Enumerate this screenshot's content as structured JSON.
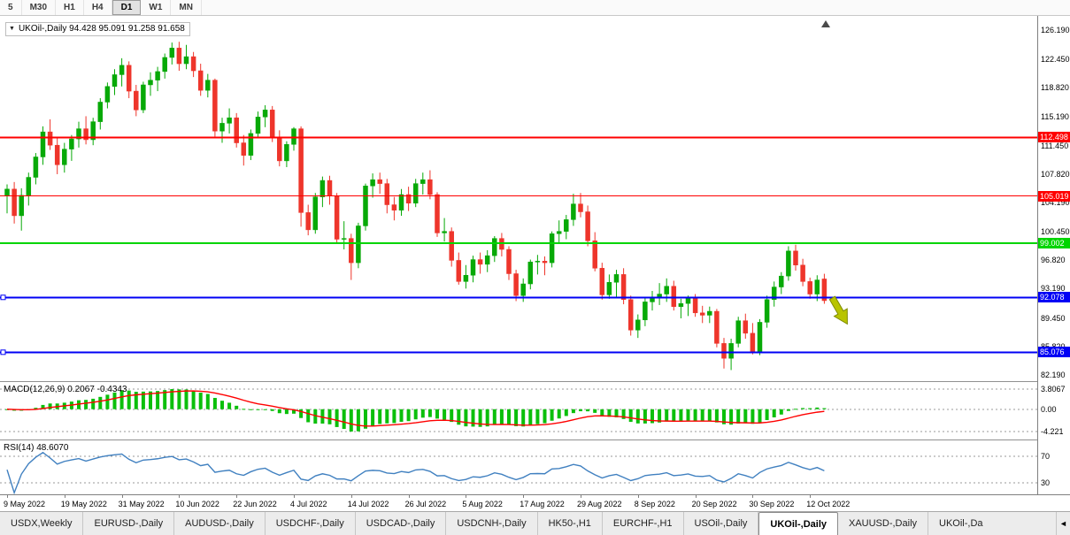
{
  "toolbar": {
    "periods": [
      "5",
      "M30",
      "H1",
      "H4",
      "D1",
      "W1",
      "MN"
    ],
    "active": "D1"
  },
  "labels": {
    "chart_title": "UKOil-,Daily  94.428 95.091 91.258 91.658",
    "macd": "MACD(12,26,9) 0.2067 -0.4343",
    "rsi": "RSI(14) 48.6070"
  },
  "icons": {
    "collapse": "▼",
    "shift_marker": "▲",
    "tab_scroll": "◄"
  },
  "chart_data": {
    "type": "candlestick",
    "symbol": "UKOil-",
    "timeframe": "Daily",
    "title_ohlc": {
      "open": 94.428,
      "high": 95.091,
      "low": 91.258,
      "close": 91.658
    },
    "y_visible_range": [
      81.4,
      128.0
    ],
    "y_axis_ticks": [
      "126.190",
      "122.450",
      "118.820",
      "115.190",
      "111.450",
      "107.820",
      "104.190",
      "100.450",
      "96.820",
      "93.190",
      "89.450",
      "85.820",
      "82.190"
    ],
    "x_axis_labels": [
      {
        "label": "9 May 2022",
        "index": 0
      },
      {
        "label": "19 May 2022",
        "index": 8
      },
      {
        "label": "31 May 2022",
        "index": 16
      },
      {
        "label": "10 Jun 2022",
        "index": 24
      },
      {
        "label": "22 Jun 2022",
        "index": 32
      },
      {
        "label": "4 Jul 2022",
        "index": 40
      },
      {
        "label": "14 Jul 2022",
        "index": 48
      },
      {
        "label": "26 Jul 2022",
        "index": 56
      },
      {
        "label": "5 Aug 2022",
        "index": 64
      },
      {
        "label": "17 Aug 2022",
        "index": 72
      },
      {
        "label": "29 Aug 2022",
        "index": 80
      },
      {
        "label": "8 Sep 2022",
        "index": 88
      },
      {
        "label": "20 Sep 2022",
        "index": 96
      },
      {
        "label": "30 Sep 2022",
        "index": 104
      },
      {
        "label": "12 Oct 2022",
        "index": 112
      }
    ],
    "levels": [
      {
        "value": 112.498,
        "label": "112.498",
        "color": "#FF0000",
        "width": 2,
        "handle": false
      },
      {
        "value": 105.019,
        "label": "105.019",
        "color": "#FF0000",
        "width": 1,
        "handle": false
      },
      {
        "value": 99.002,
        "label": "99.002",
        "color": "#00D500",
        "width": 2,
        "handle": false
      },
      {
        "value": 92.078,
        "label": "92.078",
        "color": "#0000F5",
        "width": 2,
        "handle": true
      },
      {
        "value": 85.076,
        "label": "85.076",
        "color": "#0000F5",
        "width": 2,
        "handle": true
      }
    ],
    "ohlc": [
      [
        105.0,
        106.5,
        102.8,
        105.9
      ],
      [
        105.9,
        106.8,
        101.5,
        102.5
      ],
      [
        102.5,
        106.0,
        100.6,
        105.1
      ],
      [
        105.1,
        108.0,
        103.8,
        107.4
      ],
      [
        107.4,
        110.5,
        106.5,
        110.0
      ],
      [
        110.0,
        113.9,
        109.0,
        113.2
      ],
      [
        113.2,
        114.8,
        110.9,
        111.5
      ],
      [
        111.5,
        112.5,
        107.8,
        109.0
      ],
      [
        109.0,
        111.8,
        108.0,
        111.0
      ],
      [
        111.0,
        112.8,
        109.5,
        112.3
      ],
      [
        112.3,
        114.5,
        111.2,
        113.6
      ],
      [
        113.6,
        115.2,
        111.6,
        112.2
      ],
      [
        112.2,
        115.0,
        111.5,
        114.5
      ],
      [
        114.5,
        117.5,
        113.5,
        117.0
      ],
      [
        117.0,
        119.5,
        116.2,
        119.0
      ],
      [
        119.0,
        121.2,
        117.9,
        120.5
      ],
      [
        120.5,
        122.6,
        119.0,
        121.7
      ],
      [
        121.7,
        122.2,
        117.5,
        118.4
      ],
      [
        118.4,
        119.2,
        115.2,
        116.0
      ],
      [
        116.0,
        119.6,
        115.6,
        119.2
      ],
      [
        119.2,
        120.8,
        117.8,
        119.8
      ],
      [
        119.8,
        121.5,
        118.4,
        120.9
      ],
      [
        120.9,
        123.2,
        120.0,
        122.7
      ],
      [
        122.7,
        124.6,
        121.8,
        123.9
      ],
      [
        123.9,
        124.7,
        121.0,
        121.9
      ],
      [
        121.9,
        124.3,
        121.2,
        122.8
      ],
      [
        122.8,
        123.4,
        120.2,
        121.0
      ],
      [
        121.0,
        121.9,
        117.8,
        118.5
      ],
      [
        118.5,
        120.6,
        117.6,
        119.8
      ],
      [
        119.8,
        120.0,
        112.6,
        113.3
      ],
      [
        113.3,
        115.0,
        111.8,
        114.3
      ],
      [
        114.3,
        116.2,
        113.0,
        115.0
      ],
      [
        115.0,
        115.6,
        111.2,
        111.8
      ],
      [
        111.8,
        112.8,
        108.9,
        110.2
      ],
      [
        110.2,
        113.5,
        109.6,
        113.0
      ],
      [
        113.0,
        115.8,
        112.4,
        115.1
      ],
      [
        115.1,
        116.6,
        113.8,
        116.0
      ],
      [
        116.0,
        116.5,
        111.9,
        112.5
      ],
      [
        112.5,
        113.4,
        108.8,
        109.5
      ],
      [
        109.5,
        112.0,
        108.7,
        111.6
      ],
      [
        111.6,
        113.8,
        110.8,
        113.6
      ],
      [
        113.6,
        113.9,
        101.1,
        102.9
      ],
      [
        102.9,
        103.9,
        100.0,
        100.7
      ],
      [
        100.7,
        105.4,
        100.2,
        104.9
      ],
      [
        104.9,
        107.5,
        103.6,
        107.0
      ],
      [
        107.0,
        107.6,
        103.9,
        105.0
      ],
      [
        105.0,
        105.4,
        98.9,
        99.5
      ],
      [
        99.5,
        101.8,
        98.2,
        99.6
      ],
      [
        99.6,
        100.2,
        94.3,
        96.5
      ],
      [
        96.5,
        101.6,
        95.8,
        101.2
      ],
      [
        101.2,
        106.6,
        100.6,
        106.3
      ],
      [
        106.3,
        107.9,
        104.8,
        107.1
      ],
      [
        107.1,
        108.0,
        105.3,
        106.6
      ],
      [
        106.6,
        107.2,
        102.8,
        103.9
      ],
      [
        103.9,
        104.9,
        101.9,
        103.2
      ],
      [
        103.2,
        105.9,
        102.5,
        105.2
      ],
      [
        105.2,
        106.2,
        103.1,
        104.1
      ],
      [
        104.1,
        107.2,
        103.6,
        106.6
      ],
      [
        106.6,
        108.0,
        105.2,
        107.1
      ],
      [
        107.1,
        108.3,
        104.6,
        105.2
      ],
      [
        105.2,
        105.5,
        99.8,
        100.3
      ],
      [
        100.3,
        102.2,
        99.2,
        100.5
      ],
      [
        100.5,
        101.0,
        96.0,
        96.8
      ],
      [
        96.8,
        97.8,
        93.7,
        94.1
      ],
      [
        94.1,
        96.2,
        93.2,
        94.9
      ],
      [
        94.9,
        97.4,
        94.0,
        96.9
      ],
      [
        96.9,
        97.8,
        95.1,
        96.3
      ],
      [
        96.3,
        98.1,
        95.3,
        97.4
      ],
      [
        97.4,
        99.9,
        96.6,
        99.6
      ],
      [
        99.6,
        100.3,
        97.3,
        98.2
      ],
      [
        98.2,
        98.6,
        94.3,
        95.1
      ],
      [
        95.1,
        95.6,
        91.6,
        92.3
      ],
      [
        92.3,
        94.5,
        91.5,
        93.8
      ],
      [
        93.8,
        96.9,
        93.1,
        96.6
      ],
      [
        96.6,
        97.5,
        95.0,
        96.7
      ],
      [
        96.7,
        97.3,
        94.9,
        96.5
      ],
      [
        96.5,
        100.5,
        95.9,
        100.2
      ],
      [
        100.2,
        101.9,
        99.0,
        100.5
      ],
      [
        100.5,
        102.6,
        99.5,
        102.0
      ],
      [
        102.0,
        105.3,
        101.2,
        104.0
      ],
      [
        104.0,
        105.4,
        102.3,
        103.0
      ],
      [
        103.0,
        103.8,
        98.6,
        99.3
      ],
      [
        99.3,
        100.4,
        95.4,
        95.8
      ],
      [
        95.8,
        96.5,
        91.8,
        92.4
      ],
      [
        92.4,
        95.0,
        91.9,
        94.0
      ],
      [
        94.0,
        95.6,
        92.1,
        95.0
      ],
      [
        95.0,
        95.8,
        91.2,
        91.8
      ],
      [
        91.8,
        92.3,
        87.2,
        87.9
      ],
      [
        87.9,
        89.9,
        86.9,
        89.2
      ],
      [
        89.2,
        92.0,
        88.4,
        91.5
      ],
      [
        91.5,
        92.9,
        90.4,
        92.1
      ],
      [
        92.1,
        93.9,
        91.1,
        92.5
      ],
      [
        92.5,
        94.5,
        91.5,
        93.5
      ],
      [
        93.5,
        94.2,
        90.4,
        90.9
      ],
      [
        90.9,
        91.9,
        89.4,
        91.3
      ],
      [
        91.3,
        92.3,
        89.7,
        92.0
      ],
      [
        92.0,
        92.5,
        89.6,
        90.1
      ],
      [
        90.1,
        91.0,
        88.8,
        89.8
      ],
      [
        89.8,
        90.9,
        88.8,
        90.3
      ],
      [
        90.3,
        90.6,
        85.7,
        86.2
      ],
      [
        86.2,
        86.9,
        83.0,
        84.3
      ],
      [
        84.3,
        86.8,
        82.8,
        86.2
      ],
      [
        86.2,
        89.6,
        85.7,
        89.1
      ],
      [
        89.1,
        90.0,
        86.8,
        87.5
      ],
      [
        87.5,
        88.8,
        84.8,
        85.2
      ],
      [
        85.2,
        89.3,
        84.7,
        88.9
      ],
      [
        88.9,
        92.3,
        88.2,
        91.8
      ],
      [
        91.8,
        94.1,
        90.9,
        93.4
      ],
      [
        93.4,
        95.3,
        92.5,
        94.8
      ],
      [
        94.8,
        98.6,
        94.2,
        98.0
      ],
      [
        98.0,
        98.8,
        95.5,
        96.2
      ],
      [
        96.2,
        97.0,
        93.5,
        94.1
      ],
      [
        94.1,
        94.6,
        91.9,
        92.5
      ],
      [
        92.5,
        94.9,
        91.6,
        94.3
      ],
      [
        94.43,
        95.09,
        91.26,
        91.66
      ]
    ],
    "indicators": {
      "macd": {
        "name": "MACD",
        "params": [
          12,
          26,
          9
        ],
        "current": [
          0.2067,
          -0.4343
        ],
        "axis_ticks": [
          "3.8067",
          "0.00",
          "-4.221"
        ]
      },
      "rsi": {
        "name": "RSI",
        "params": [
          14
        ],
        "current": 48.607,
        "level_lines": [
          70,
          30
        ],
        "axis_ticks": [
          "70",
          "30"
        ]
      }
    },
    "colors": {
      "up": "#07A907",
      "down": "#EE352B",
      "macd": "#0BBF0B",
      "signal": "#FF0000",
      "rsi": "#4080C0"
    },
    "annotations": [
      {
        "type": "arrow",
        "direction": "down-right",
        "color": "#B8C400",
        "near_index": 114,
        "price": 92.0
      }
    ]
  },
  "tabs": [
    {
      "label": "USDX,Weekly"
    },
    {
      "label": "EURUSD-,Daily"
    },
    {
      "label": "AUDUSD-,Daily"
    },
    {
      "label": "USDCHF-,Daily"
    },
    {
      "label": "USDCAD-,Daily"
    },
    {
      "label": "USDCNH-,Daily"
    },
    {
      "label": "HK50-,H1"
    },
    {
      "label": "EURCHF-,H1"
    },
    {
      "label": "USOil-,Daily"
    },
    {
      "label": "UKOil-,Daily",
      "active": true
    },
    {
      "label": "XAUUSD-,Daily"
    },
    {
      "label": "UKOil-,Da",
      "truncated": true
    }
  ]
}
